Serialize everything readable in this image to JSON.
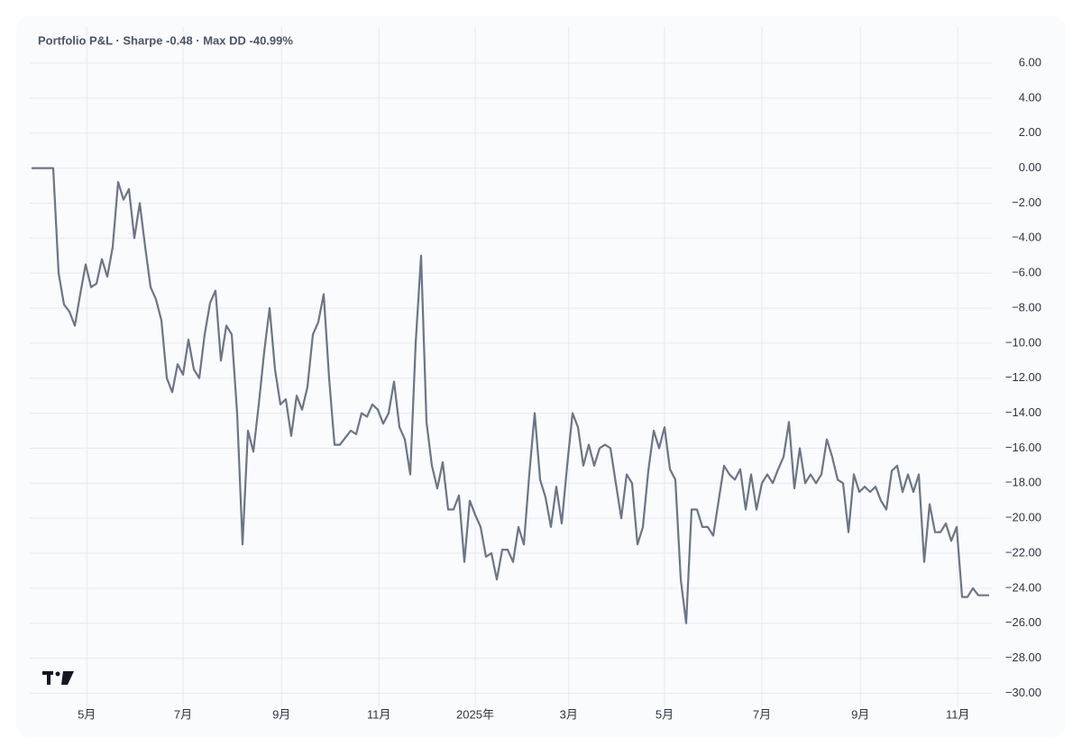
{
  "chart_data": {
    "type": "line",
    "title": "Portfolio P&L · Sharpe -0.48 · Max DD -40.99%",
    "series": [
      {
        "color": "#6b7587",
        "values": [
          0,
          0,
          0,
          0,
          0,
          -6.0,
          -7.8,
          -8.2,
          -9.0,
          -7.2,
          -5.5,
          -6.8,
          -6.6,
          -5.2,
          -6.2,
          -4.5,
          -0.8,
          -1.8,
          -1.2,
          -4.0,
          -2.0,
          -4.5,
          -6.8,
          -7.5,
          -8.7,
          -12.0,
          -12.8,
          -11.2,
          -11.8,
          -9.8,
          -11.5,
          -12.0,
          -9.5,
          -7.7,
          -7.0,
          -11.0,
          -9.0,
          -9.5,
          -14.0,
          -21.5,
          -15.0,
          -16.2,
          -13.5,
          -10.5,
          -8.0,
          -11.5,
          -13.5,
          -13.2,
          -15.3,
          -13.0,
          -13.8,
          -12.5,
          -9.5,
          -8.8,
          -7.2,
          -12.0,
          -15.8,
          -15.8,
          -15.4,
          -15.0,
          -15.2,
          -14.0,
          -14.2,
          -13.5,
          -13.8,
          -14.6,
          -14.0,
          -12.2,
          -14.8,
          -15.5,
          -17.5,
          -10.0,
          -5.0,
          -14.5,
          -17.0,
          -18.3,
          -16.8,
          -19.5,
          -19.5,
          -18.7,
          -22.5,
          -19.0,
          -19.8,
          -20.5,
          -22.2,
          -22.0,
          -23.5,
          -21.8,
          -21.8,
          -22.5,
          -20.5,
          -21.5,
          -17.5,
          -14.0,
          -17.8,
          -18.8,
          -20.5,
          -18.2,
          -20.3,
          -17.0,
          -14.0,
          -14.8,
          -17.0,
          -15.8,
          -17.0,
          -16.0,
          -15.8,
          -16.0,
          -18.0,
          -20.0,
          -17.5,
          -18.0,
          -21.5,
          -20.5,
          -17.3,
          -15.0,
          -16.0,
          -14.8,
          -17.2,
          -17.8,
          -23.5,
          -26.0,
          -19.5,
          -19.5,
          -20.5,
          -20.5,
          -21.0,
          -19.0,
          -17.0,
          -17.5,
          -17.8,
          -17.2,
          -19.5,
          -17.5,
          -19.5,
          -18.0,
          -17.5,
          -18.0,
          -17.2,
          -16.5,
          -14.5,
          -18.3,
          -16.0,
          -18.0,
          -17.5,
          -18.0,
          -17.5,
          -15.5,
          -16.5,
          -17.8,
          -18.0,
          -20.8,
          -17.5,
          -18.5,
          -18.2,
          -18.5,
          -18.2,
          -19.0,
          -19.5,
          -17.3,
          -17.0,
          -18.5,
          -17.5,
          -18.5,
          -17.5,
          -22.5,
          -19.2,
          -20.8,
          -20.8,
          -20.3,
          -21.3,
          -20.5,
          -24.5,
          -24.5,
          -24.0,
          -24.4,
          -24.4,
          -24.4
        ]
      }
    ],
    "xlim": [
      0,
      177.5
    ],
    "xticks": [
      {
        "value": 10.2,
        "label": "5月"
      },
      {
        "value": 28,
        "label": "7月"
      },
      {
        "value": 46.2,
        "label": "9月"
      },
      {
        "value": 64.2,
        "label": "11月"
      },
      {
        "value": 82,
        "label": "2025年"
      },
      {
        "value": 99.3,
        "label": "3月"
      },
      {
        "value": 117,
        "label": "5月"
      },
      {
        "value": 135,
        "label": "7月"
      },
      {
        "value": 153.2,
        "label": "9月"
      },
      {
        "value": 171.2,
        "label": "11月"
      }
    ],
    "ylim": [
      -30.8,
      8.06
    ],
    "yticks": [
      {
        "value": 6,
        "label": "6.00"
      },
      {
        "value": 4,
        "label": "4.00"
      },
      {
        "value": 2,
        "label": "2.00"
      },
      {
        "value": 0,
        "label": "0.00"
      },
      {
        "value": -2,
        "label": "−2.00"
      },
      {
        "value": -4,
        "label": "−4.00"
      },
      {
        "value": -6,
        "label": "−6.00"
      },
      {
        "value": -8,
        "label": "−8.00"
      },
      {
        "value": -10,
        "label": "−10.00"
      },
      {
        "value": -12,
        "label": "−12.00"
      },
      {
        "value": -14,
        "label": "−14.00"
      },
      {
        "value": -16,
        "label": "−16.00"
      },
      {
        "value": -18,
        "label": "−18.00"
      },
      {
        "value": -20,
        "label": "−20.00"
      },
      {
        "value": -22,
        "label": "−22.00"
      },
      {
        "value": -24,
        "label": "−24.00"
      },
      {
        "value": -26,
        "label": "−26.00"
      },
      {
        "value": -28,
        "label": "−28.00"
      },
      {
        "value": -30,
        "label": "−30.00"
      }
    ],
    "grid": true
  }
}
